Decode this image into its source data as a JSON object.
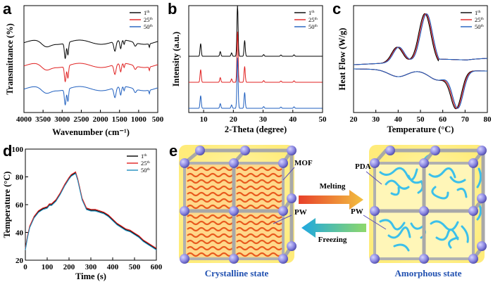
{
  "chart_data": [
    {
      "panel": "a",
      "type": "line",
      "xlabel": "Wavenumber (cm⁻¹)",
      "ylabel": "Transmittance (%)",
      "xlim": [
        4000,
        500
      ],
      "xticks": [
        4000,
        3500,
        3000,
        2500,
        2000,
        1500,
        1000,
        500
      ],
      "series": [
        {
          "name": "1th",
          "sup": "th",
          "base": "1",
          "color": "#000000",
          "offset": 0
        },
        {
          "name": "25th",
          "sup": "th",
          "base": "25",
          "color": "#e02020",
          "offset": 1
        },
        {
          "name": "50th",
          "sup": "th",
          "base": "50",
          "color": "#1f5fbf",
          "offset": 2
        }
      ]
    },
    {
      "panel": "b",
      "type": "line",
      "xlabel": "2-Theta (degree)",
      "ylabel": "Intensity (a.u.)",
      "xlim": [
        5,
        50
      ],
      "xticks": [
        10,
        20,
        30,
        40,
        50
      ],
      "peaks": [
        [
          9,
          6
        ],
        [
          15.6,
          2.2
        ],
        [
          19.4,
          1.6
        ],
        [
          21.4,
          24
        ],
        [
          23.8,
          7.5
        ],
        [
          30.2,
          0.8
        ],
        [
          36,
          0.6
        ],
        [
          40.4,
          0.7
        ]
      ],
      "series": [
        {
          "name": "1th",
          "base": "1",
          "sup": "th",
          "color": "#000000",
          "offset": 0
        },
        {
          "name": "25th",
          "base": "25",
          "sup": "th",
          "color": "#e02020",
          "offset": 1
        },
        {
          "name": "50th",
          "base": "50",
          "sup": "th",
          "color": "#1f5fbf",
          "offset": 2
        }
      ]
    },
    {
      "panel": "c",
      "type": "line",
      "xlabel": "Temperature (°C)",
      "ylabel": "Heat Flow (W/g)",
      "xlim": [
        20,
        80
      ],
      "xticks": [
        20,
        30,
        40,
        50,
        60,
        70,
        80
      ],
      "series": [
        {
          "name": "1th",
          "base": "1",
          "sup": "th",
          "color": "#000000"
        },
        {
          "name": "25th",
          "base": "25",
          "sup": "th",
          "color": "#e02020"
        },
        {
          "name": "50th",
          "base": "50",
          "sup": "th",
          "color": "#1f5fbf"
        }
      ]
    },
    {
      "panel": "d",
      "type": "line",
      "xlabel": "Time (s)",
      "ylabel": "Temperature (°C)",
      "xlim": [
        0,
        600
      ],
      "ylim": [
        20,
        100
      ],
      "xticks": [
        0,
        100,
        200,
        300,
        400,
        500,
        600
      ],
      "yticks": [
        20,
        40,
        60,
        80,
        100
      ],
      "x": [
        0,
        10,
        20,
        40,
        60,
        80,
        100,
        110,
        120,
        140,
        160,
        180,
        200,
        210,
        220,
        230,
        240,
        250,
        260,
        280,
        300,
        320,
        340,
        360,
        380,
        400,
        420,
        440,
        460,
        480,
        500,
        520,
        540,
        560,
        580,
        600
      ],
      "y": [
        28,
        37,
        44,
        51,
        55,
        57,
        58,
        60,
        60,
        63,
        68,
        74,
        79,
        81,
        82,
        83,
        78,
        71,
        64,
        57,
        56,
        56,
        55,
        54,
        52,
        49,
        46,
        44,
        42,
        41,
        39,
        37,
        34,
        32,
        30,
        28
      ],
      "series": [
        {
          "name": "1th",
          "base": "1",
          "sup": "th",
          "color": "#000000",
          "dy": 0
        },
        {
          "name": "25th",
          "base": "25",
          "sup": "th",
          "color": "#e02020",
          "dy": 0.6
        },
        {
          "name": "50th",
          "base": "50",
          "sup": "th",
          "color": "#1f8fbf",
          "dy": -0.6
        }
      ]
    }
  ],
  "panel_labels": [
    "a",
    "b",
    "c",
    "d",
    "e"
  ],
  "schematic": {
    "label_mof": "MOF",
    "label_pda": "PDA",
    "label_pw_left": "PW",
    "label_pw_right": "PW",
    "label_melting": "Melting",
    "label_freezing": "Freezing",
    "caption_left": "Crystalline state",
    "caption_right": "Amorphous state",
    "colors": {
      "node": "#8a86e0",
      "bar": "#b9b9b9",
      "wave": "#e85a1e",
      "glow": "#fff38a",
      "amorph": "#40c4e8",
      "caption": "#1f4fb0",
      "arrow_melt": "#e8402a",
      "arrow_freeze": "#22b8d8"
    }
  }
}
